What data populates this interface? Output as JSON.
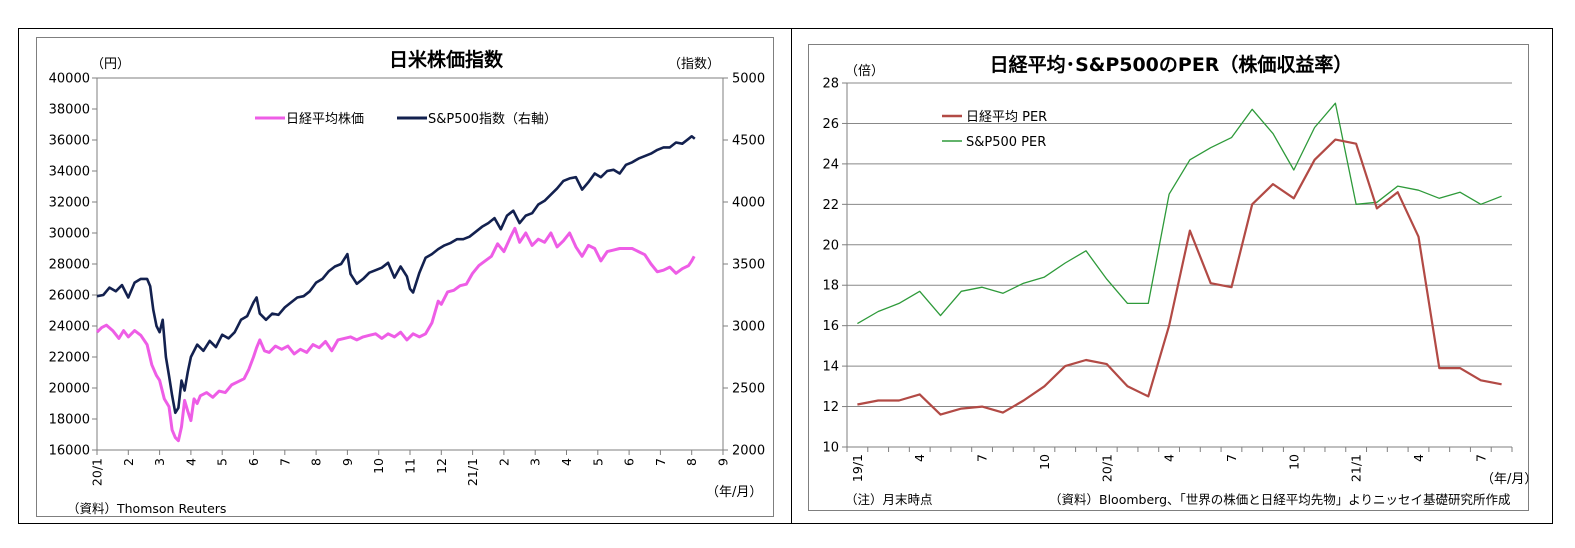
{
  "left_chart_meta": {
    "title": "日米株価指数",
    "left_unit": "（円）",
    "right_unit": "（指数）",
    "x_unit": "（年/月）",
    "source": "（資料）Thomson Reuters"
  },
  "right_chart_meta": {
    "title": "日経平均･S&P500のPER（株価収益率）",
    "y_unit": "（倍）",
    "x_unit": "（年/月）",
    "note": "（注）月末時点",
    "source": "（資料）Bloomberg、「世界の株価と日経平均先物」よりニッセイ基礎研究所作成"
  },
  "colors": {
    "nikkei": "#ee5de6",
    "sp500_index": "#13214f",
    "nikkei_per": "#b24a45",
    "sp500_per": "#2e9a3a"
  },
  "chart_data": [
    {
      "type": "line",
      "title": "日米株価指数",
      "x": [
        "20/1",
        "2",
        "3",
        "4",
        "5",
        "6",
        "7",
        "8",
        "9",
        "10",
        "11",
        "12",
        "21/1",
        "2",
        "3",
        "4",
        "5",
        "6",
        "7",
        "8",
        "9"
      ],
      "x_ticks": [
        "20/1",
        "2",
        "3",
        "4",
        "5",
        "6",
        "7",
        "8",
        "9",
        "10",
        "11",
        "12",
        "21/1",
        "2",
        "3",
        "4",
        "5",
        "6",
        "7",
        "8",
        "9"
      ],
      "left_axis": {
        "label": "（円）",
        "ylim": [
          16000,
          40000
        ],
        "ticks": [
          16000,
          18000,
          20000,
          22000,
          24000,
          26000,
          28000,
          30000,
          32000,
          34000,
          36000,
          38000,
          40000
        ]
      },
      "right_axis": {
        "label": "（指数）",
        "ylim": [
          2000,
          5000
        ],
        "ticks": [
          2000,
          2500,
          3000,
          3500,
          4000,
          4500,
          5000
        ]
      },
      "series": [
        {
          "name": "日経平均株価",
          "axis": "left",
          "color": "#ee5de6",
          "values": [
            [
              0,
              23600
            ],
            [
              0.15,
              23900
            ],
            [
              0.3,
              24050
            ],
            [
              0.5,
              23700
            ],
            [
              0.7,
              23200
            ],
            [
              0.85,
              23700
            ],
            [
              1.0,
              23300
            ],
            [
              1.2,
              23700
            ],
            [
              1.4,
              23400
            ],
            [
              1.6,
              22800
            ],
            [
              1.75,
              21500
            ],
            [
              1.9,
              20800
            ],
            [
              2.0,
              20500
            ],
            [
              2.15,
              19300
            ],
            [
              2.3,
              18800
            ],
            [
              2.4,
              17300
            ],
            [
              2.5,
              16800
            ],
            [
              2.6,
              16600
            ],
            [
              2.7,
              17500
            ],
            [
              2.8,
              19200
            ],
            [
              2.9,
              18500
            ],
            [
              3.0,
              17900
            ],
            [
              3.1,
              19300
            ],
            [
              3.2,
              19000
            ],
            [
              3.3,
              19500
            ],
            [
              3.5,
              19700
            ],
            [
              3.7,
              19400
            ],
            [
              3.9,
              19800
            ],
            [
              4.1,
              19700
            ],
            [
              4.3,
              20200
            ],
            [
              4.5,
              20400
            ],
            [
              4.7,
              20600
            ],
            [
              4.85,
              21200
            ],
            [
              5.0,
              22000
            ],
            [
              5.1,
              22600
            ],
            [
              5.2,
              23100
            ],
            [
              5.35,
              22400
            ],
            [
              5.5,
              22300
            ],
            [
              5.7,
              22700
            ],
            [
              5.9,
              22500
            ],
            [
              6.1,
              22700
            ],
            [
              6.3,
              22200
            ],
            [
              6.5,
              22500
            ],
            [
              6.7,
              22300
            ],
            [
              6.9,
              22800
            ],
            [
              7.1,
              22600
            ],
            [
              7.3,
              23000
            ],
            [
              7.5,
              22400
            ],
            [
              7.7,
              23100
            ],
            [
              7.9,
              23200
            ],
            [
              8.1,
              23300
            ],
            [
              8.3,
              23100
            ],
            [
              8.5,
              23300
            ],
            [
              8.7,
              23400
            ],
            [
              8.9,
              23500
            ],
            [
              9.1,
              23200
            ],
            [
              9.3,
              23500
            ],
            [
              9.5,
              23300
            ],
            [
              9.7,
              23600
            ],
            [
              9.9,
              23100
            ],
            [
              10.1,
              23500
            ],
            [
              10.3,
              23300
            ],
            [
              10.5,
              23500
            ],
            [
              10.7,
              24200
            ],
            [
              10.9,
              25600
            ],
            [
              11.0,
              25400
            ],
            [
              11.2,
              26200
            ],
            [
              11.4,
              26300
            ],
            [
              11.6,
              26600
            ],
            [
              11.8,
              26700
            ],
            [
              12.0,
              27400
            ],
            [
              12.2,
              27900
            ],
            [
              12.4,
              28200
            ],
            [
              12.6,
              28500
            ],
            [
              12.8,
              29300
            ],
            [
              13.0,
              28800
            ],
            [
              13.2,
              29700
            ],
            [
              13.35,
              30300
            ],
            [
              13.5,
              29400
            ],
            [
              13.7,
              30000
            ],
            [
              13.9,
              29200
            ],
            [
              14.1,
              29600
            ],
            [
              14.3,
              29400
            ],
            [
              14.5,
              30000
            ],
            [
              14.7,
              29100
            ],
            [
              14.9,
              29500
            ],
            [
              15.1,
              30000
            ],
            [
              15.3,
              29100
            ],
            [
              15.5,
              28500
            ],
            [
              15.7,
              29200
            ],
            [
              15.9,
              29000
            ],
            [
              16.1,
              28200
            ],
            [
              16.3,
              28800
            ],
            [
              16.5,
              28900
            ],
            [
              16.7,
              29000
            ],
            [
              16.9,
              29000
            ],
            [
              17.1,
              29000
            ],
            [
              17.3,
              28800
            ],
            [
              17.5,
              28600
            ],
            [
              17.7,
              28000
            ],
            [
              17.9,
              27500
            ],
            [
              18.1,
              27600
            ],
            [
              18.3,
              27800
            ],
            [
              18.5,
              27400
            ],
            [
              18.7,
              27700
            ],
            [
              18.9,
              27900
            ],
            [
              19.0,
              28200
            ],
            [
              19.08,
              28500
            ]
          ]
        },
        {
          "name": "S&P500指数（右軸）",
          "axis": "right",
          "color": "#13214f",
          "values": [
            [
              0,
              3240
            ],
            [
              0.2,
              3250
            ],
            [
              0.4,
              3310
            ],
            [
              0.6,
              3280
            ],
            [
              0.8,
              3330
            ],
            [
              1.0,
              3230
            ],
            [
              1.2,
              3350
            ],
            [
              1.4,
              3380
            ],
            [
              1.6,
              3380
            ],
            [
              1.7,
              3320
            ],
            [
              1.8,
              3130
            ],
            [
              1.9,
              3000
            ],
            [
              2.0,
              2950
            ],
            [
              2.1,
              3050
            ],
            [
              2.2,
              2750
            ],
            [
              2.3,
              2600
            ],
            [
              2.4,
              2440
            ],
            [
              2.5,
              2300
            ],
            [
              2.6,
              2340
            ],
            [
              2.7,
              2560
            ],
            [
              2.8,
              2480
            ],
            [
              2.9,
              2630
            ],
            [
              3.0,
              2750
            ],
            [
              3.2,
              2850
            ],
            [
              3.4,
              2800
            ],
            [
              3.6,
              2880
            ],
            [
              3.8,
              2830
            ],
            [
              4.0,
              2930
            ],
            [
              4.2,
              2900
            ],
            [
              4.4,
              2950
            ],
            [
              4.6,
              3050
            ],
            [
              4.8,
              3080
            ],
            [
              5.0,
              3190
            ],
            [
              5.1,
              3230
            ],
            [
              5.2,
              3100
            ],
            [
              5.4,
              3050
            ],
            [
              5.6,
              3100
            ],
            [
              5.8,
              3090
            ],
            [
              6.0,
              3150
            ],
            [
              6.2,
              3190
            ],
            [
              6.4,
              3230
            ],
            [
              6.6,
              3240
            ],
            [
              6.8,
              3280
            ],
            [
              7.0,
              3350
            ],
            [
              7.2,
              3380
            ],
            [
              7.4,
              3440
            ],
            [
              7.6,
              3480
            ],
            [
              7.8,
              3500
            ],
            [
              8.0,
              3580
            ],
            [
              8.1,
              3420
            ],
            [
              8.3,
              3340
            ],
            [
              8.5,
              3380
            ],
            [
              8.7,
              3430
            ],
            [
              8.9,
              3450
            ],
            [
              9.1,
              3470
            ],
            [
              9.3,
              3510
            ],
            [
              9.5,
              3390
            ],
            [
              9.7,
              3480
            ],
            [
              9.9,
              3400
            ],
            [
              10.0,
              3300
            ],
            [
              10.1,
              3270
            ],
            [
              10.3,
              3430
            ],
            [
              10.5,
              3550
            ],
            [
              10.7,
              3580
            ],
            [
              10.9,
              3620
            ],
            [
              11.1,
              3650
            ],
            [
              11.3,
              3670
            ],
            [
              11.5,
              3700
            ],
            [
              11.7,
              3700
            ],
            [
              11.9,
              3720
            ],
            [
              12.1,
              3760
            ],
            [
              12.3,
              3800
            ],
            [
              12.5,
              3830
            ],
            [
              12.7,
              3870
            ],
            [
              12.9,
              3780
            ],
            [
              13.1,
              3890
            ],
            [
              13.3,
              3930
            ],
            [
              13.5,
              3830
            ],
            [
              13.7,
              3890
            ],
            [
              13.9,
              3910
            ],
            [
              14.1,
              3980
            ],
            [
              14.3,
              4010
            ],
            [
              14.5,
              4060
            ],
            [
              14.7,
              4110
            ],
            [
              14.9,
              4170
            ],
            [
              15.1,
              4190
            ],
            [
              15.3,
              4200
            ],
            [
              15.5,
              4100
            ],
            [
              15.7,
              4160
            ],
            [
              15.9,
              4230
            ],
            [
              16.1,
              4200
            ],
            [
              16.3,
              4250
            ],
            [
              16.5,
              4260
            ],
            [
              16.7,
              4230
            ],
            [
              16.9,
              4300
            ],
            [
              17.1,
              4320
            ],
            [
              17.3,
              4350
            ],
            [
              17.5,
              4370
            ],
            [
              17.7,
              4390
            ],
            [
              17.9,
              4420
            ],
            [
              18.1,
              4440
            ],
            [
              18.3,
              4440
            ],
            [
              18.5,
              4480
            ],
            [
              18.7,
              4470
            ],
            [
              18.9,
              4510
            ],
            [
              19.0,
              4530
            ],
            [
              19.1,
              4510
            ]
          ]
        }
      ]
    },
    {
      "type": "line",
      "title": "日経平均･S&P500のPER（株価収益率）",
      "categories": [
        "19/1",
        "19/2",
        "19/3",
        "19/4",
        "19/5",
        "19/6",
        "19/7",
        "19/8",
        "19/9",
        "19/10",
        "19/11",
        "19/12",
        "20/1",
        "20/2",
        "20/3",
        "20/4",
        "20/5",
        "20/6",
        "20/7",
        "20/8",
        "20/9",
        "20/10",
        "20/11",
        "20/12",
        "21/1",
        "21/2",
        "21/3",
        "21/4",
        "21/5",
        "21/6",
        "21/7",
        "21/8"
      ],
      "x_ticks": [
        "19/1",
        "4",
        "7",
        "10",
        "20/1",
        "4",
        "7",
        "10",
        "21/1",
        "4",
        "7"
      ],
      "ylim": [
        10,
        28
      ],
      "y_ticks": [
        10,
        12,
        14,
        16,
        18,
        20,
        22,
        24,
        26,
        28
      ],
      "ylabel": "（倍）",
      "series": [
        {
          "name": "日経平均 PER",
          "color": "#b24a45",
          "values": [
            12.1,
            12.3,
            12.3,
            12.6,
            11.6,
            11.9,
            12.0,
            11.7,
            12.3,
            13.0,
            14.0,
            14.3,
            14.1,
            13.0,
            12.5,
            16.0,
            20.7,
            18.1,
            17.9,
            22.0,
            23.0,
            22.3,
            24.2,
            25.2,
            25.0,
            21.8,
            22.6,
            20.4,
            13.9,
            13.9,
            13.3,
            13.1
          ]
        },
        {
          "name": "S&P500 PER",
          "color": "#2e9a3a",
          "values": [
            16.1,
            16.7,
            17.1,
            17.7,
            16.5,
            17.7,
            17.9,
            17.6,
            18.1,
            18.4,
            19.1,
            19.7,
            18.3,
            17.1,
            17.1,
            22.5,
            24.2,
            24.8,
            25.3,
            26.7,
            25.5,
            23.7,
            25.8,
            27.0,
            22.0,
            22.1,
            22.9,
            22.7,
            22.3,
            22.6,
            22.0,
            22.4
          ]
        }
      ]
    }
  ]
}
